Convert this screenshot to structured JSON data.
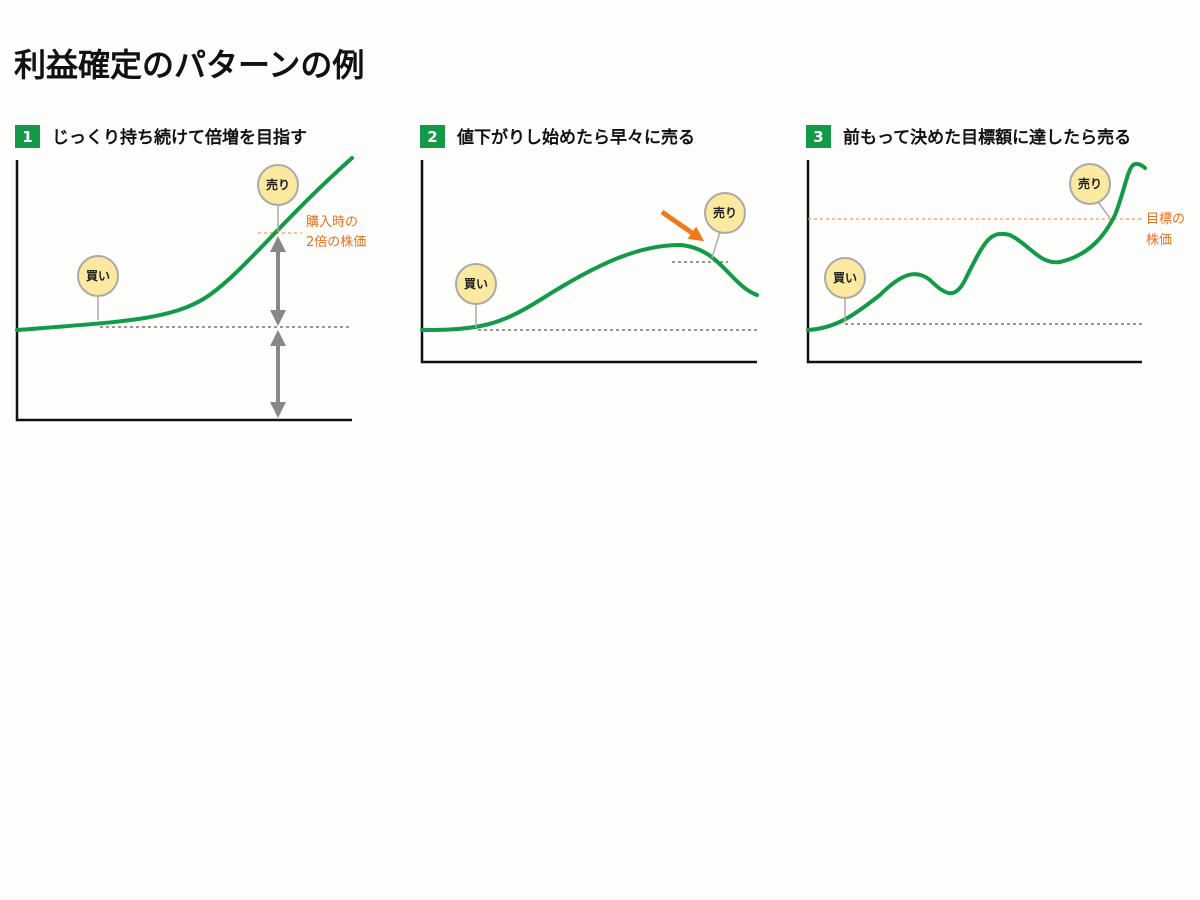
{
  "header": {
    "title": "利益確定のパターンの例"
  },
  "panels": [
    {
      "number": "1",
      "title": "じっくり持ち続けて倍増を目指す",
      "buy": "買い",
      "sell": "売り",
      "annotation": [
        "購入時の",
        "2倍の株価"
      ]
    },
    {
      "number": "2",
      "title": "値下がりし始めたら早々に売る",
      "buy": "買い",
      "sell": "売り"
    },
    {
      "number": "3",
      "title": "前もって決めた目標額に達したら売る",
      "buy": "買い",
      "sell": "売り",
      "annotation": [
        "目標の",
        "株価"
      ]
    }
  ]
}
